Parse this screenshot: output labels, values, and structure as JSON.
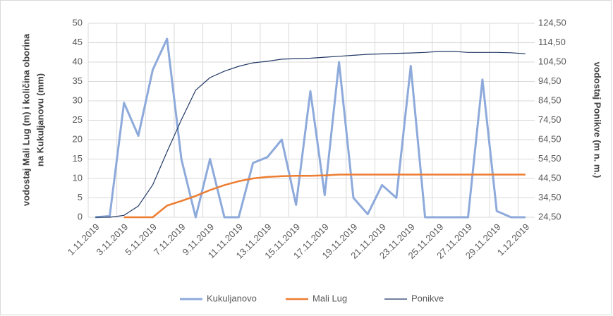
{
  "chart_data": {
    "type": "line",
    "ylabel": [
      "vodostaj Mali Lug (m) i količina oborina",
      "na Kukuljanovu (mm)"
    ],
    "y2label": "vodostaj Ponikve (m n. m.)",
    "categories": [
      "1.11.2019",
      null,
      "3.11.2019",
      null,
      "5.11.2019",
      null,
      "7.11.2019",
      null,
      "9.11.2019",
      null,
      "11.11.2019",
      null,
      "13.11.2019",
      null,
      "15.11.2019",
      null,
      "17.11.2019",
      null,
      "19.11.2019",
      null,
      "21.11.2019",
      null,
      "23.11.2019",
      null,
      "25.11.2019",
      null,
      "27.11.2019",
      null,
      "29.11.2019",
      null,
      "1.12.2019"
    ],
    "ylim": [
      0,
      50
    ],
    "yticks": [
      0,
      5,
      10,
      15,
      20,
      25,
      30,
      35,
      40,
      45,
      50
    ],
    "y2lim": [
      24.5,
      124.5
    ],
    "y2ticks": [
      {
        "value": 24.5,
        "label": "24,50"
      },
      {
        "value": 34.5,
        "label": "34,50"
      },
      {
        "value": 44.5,
        "label": "44,50"
      },
      {
        "value": 54.5,
        "label": "54,50"
      },
      {
        "value": 64.5,
        "label": "64,50"
      },
      {
        "value": 74.5,
        "label": "74,50"
      },
      {
        "value": 84.5,
        "label": "84,50"
      },
      {
        "value": 94.5,
        "label": "94,50"
      },
      {
        "value": 104.5,
        "label": "104,50"
      },
      {
        "value": 114.5,
        "label": "114,50"
      },
      {
        "value": 124.5,
        "label": "124,50"
      }
    ],
    "grid": true,
    "legend": "bottom",
    "series": [
      {
        "name": "Kukuljanovo",
        "color": "#8eaadb",
        "width": 3,
        "values": [
          0,
          0.3,
          29.5,
          21,
          38,
          46,
          15,
          0,
          15,
          0,
          0,
          14,
          15.5,
          20,
          3.2,
          32.5,
          5.7,
          40,
          5,
          0.8,
          8.3,
          5,
          39,
          0,
          0,
          0,
          0,
          35.5,
          1.6,
          0,
          0
        ]
      },
      {
        "name": "Mali Lug",
        "color": "#ed7d31",
        "width": 2.5,
        "values": [
          null,
          null,
          0,
          0,
          0,
          3,
          4.2,
          5.5,
          7,
          8.3,
          9.3,
          10,
          10.4,
          10.6,
          10.7,
          10.7,
          10.8,
          11,
          11,
          11,
          11,
          11,
          11,
          11,
          11,
          11,
          11,
          11,
          11,
          11,
          11
        ]
      },
      {
        "name": "Ponikve",
        "color": "#203864",
        "width": 1.2,
        "axis": "y2",
        "values": [
          24.5,
          24.5,
          25.5,
          30.3,
          41.2,
          58.3,
          74.7,
          90,
          96.5,
          99.8,
          102.3,
          104.1,
          104.9,
          106,
          106.3,
          106.5,
          107,
          107.5,
          108,
          108.5,
          108.7,
          109,
          109.2,
          109.5,
          110,
          110,
          109.5,
          109.5,
          109.5,
          109.3,
          108.8
        ]
      }
    ]
  }
}
